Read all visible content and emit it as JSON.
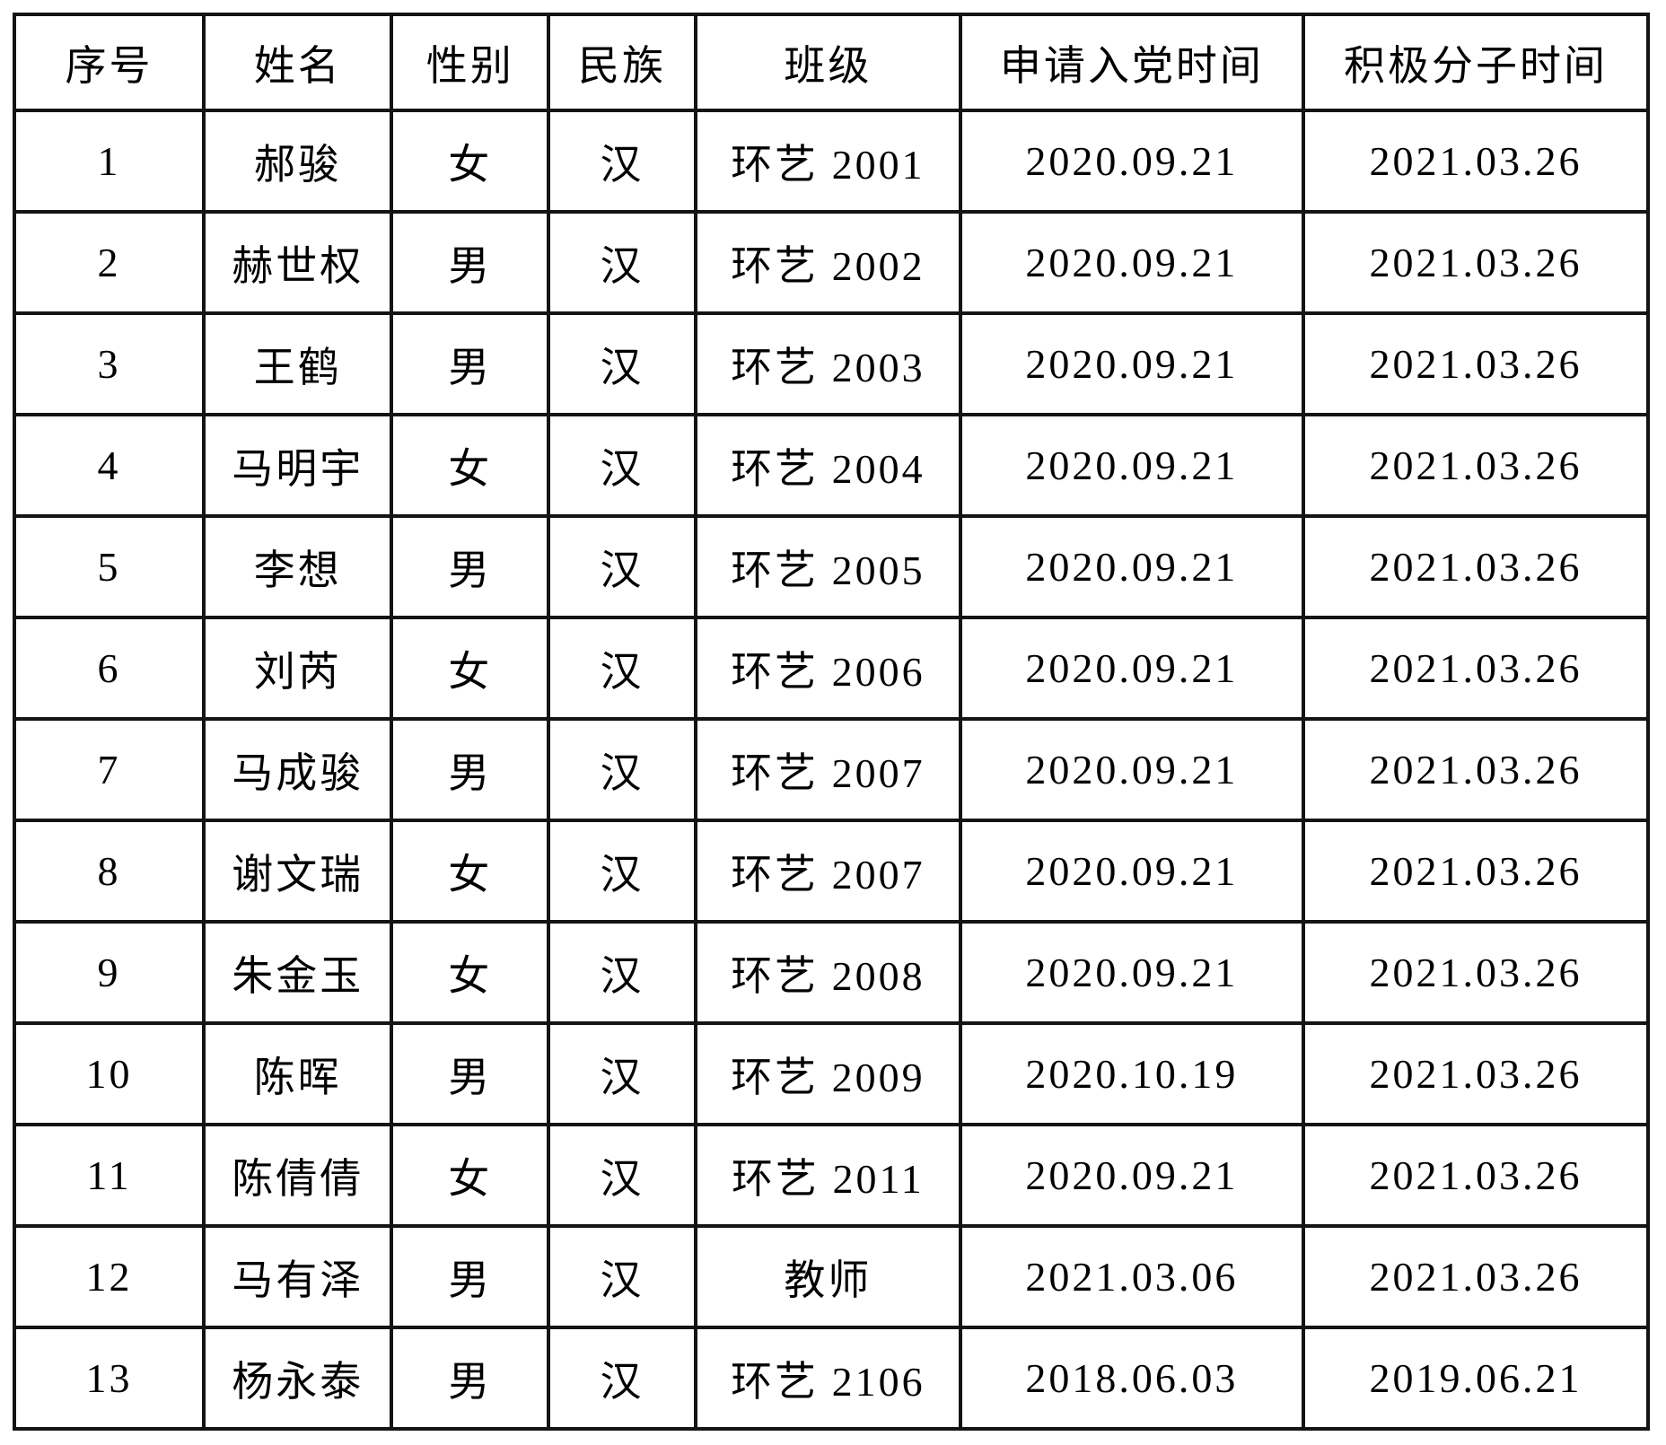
{
  "table": {
    "headers": [
      "序号",
      "姓名",
      "性别",
      "民族",
      "班级",
      "申请入党时间",
      "积极分子时间"
    ],
    "rows": [
      [
        "1",
        "郝骏",
        "女",
        "汉",
        "环艺 2001",
        "2020.09.21",
        "2021.03.26"
      ],
      [
        "2",
        "赫世权",
        "男",
        "汉",
        "环艺 2002",
        "2020.09.21",
        "2021.03.26"
      ],
      [
        "3",
        "王鹤",
        "男",
        "汉",
        "环艺 2003",
        "2020.09.21",
        "2021.03.26"
      ],
      [
        "4",
        "马明宇",
        "女",
        "汉",
        "环艺 2004",
        "2020.09.21",
        "2021.03.26"
      ],
      [
        "5",
        "李想",
        "男",
        "汉",
        "环艺 2005",
        "2020.09.21",
        "2021.03.26"
      ],
      [
        "6",
        "刘芮",
        "女",
        "汉",
        "环艺 2006",
        "2020.09.21",
        "2021.03.26"
      ],
      [
        "7",
        "马成骏",
        "男",
        "汉",
        "环艺 2007",
        "2020.09.21",
        "2021.03.26"
      ],
      [
        "8",
        "谢文瑞",
        "女",
        "汉",
        "环艺 2007",
        "2020.09.21",
        "2021.03.26"
      ],
      [
        "9",
        "朱金玉",
        "女",
        "汉",
        "环艺 2008",
        "2020.09.21",
        "2021.03.26"
      ],
      [
        "10",
        "陈晖",
        "男",
        "汉",
        "环艺 2009",
        "2020.10.19",
        "2021.03.26"
      ],
      [
        "11",
        "陈倩倩",
        "女",
        "汉",
        "环艺 2011",
        "2020.09.21",
        "2021.03.26"
      ],
      [
        "12",
        "马有泽",
        "男",
        "汉",
        "教师",
        "2021.03.06",
        "2021.03.26"
      ],
      [
        "13",
        "杨永泰",
        "男",
        "汉",
        "环艺 2106",
        "2018.06.03",
        "2019.06.21"
      ]
    ],
    "column_widths_pct": [
      11.6,
      11.5,
      9.6,
      9.0,
      16.2,
      21.0,
      21.1
    ]
  },
  "colors": {
    "border": "#141414",
    "background": "#ffffff",
    "text": "#000000"
  }
}
